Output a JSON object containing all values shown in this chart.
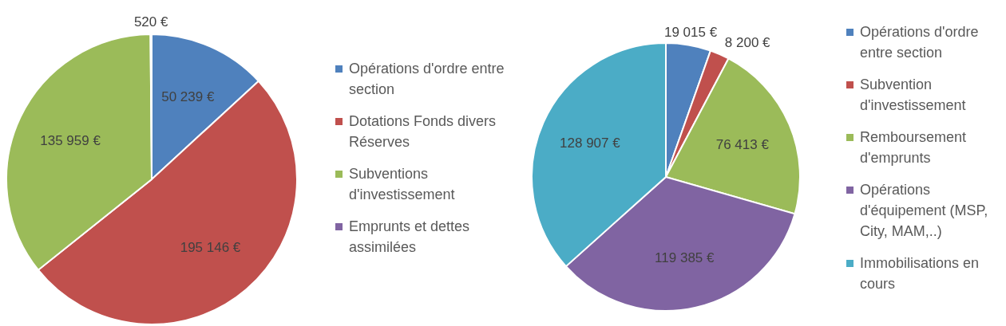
{
  "chart_data": [
    {
      "type": "pie",
      "categories": [
        "Opérations d'ordre entre section",
        "Dotations Fonds divers Réserves",
        "Subventions d'investissement",
        "Emprunts et dettes assimilées"
      ],
      "values": [
        50239,
        195146,
        135959,
        520
      ],
      "value_labels": [
        "50 239 €",
        "195 146 €",
        "135 959 €",
        "520 €"
      ],
      "colors": [
        "#4f81bd",
        "#c0504d",
        "#9bbb59",
        "#8064a2"
      ],
      "legend": "right"
    },
    {
      "type": "pie",
      "categories": [
        "Opérations d'ordre entre section",
        "Subvention d'investissement",
        "Remboursement d'emprunts",
        "Opérations d'équipement (MSP, City, MAM,..)",
        "Immobilisations en cours"
      ],
      "values": [
        19015,
        8200,
        76413,
        119385,
        128907
      ],
      "value_labels": [
        "19 015 €",
        "8 200 €",
        "76 413 €",
        "119 385 €",
        "128 907 €"
      ],
      "colors": [
        "#4f81bd",
        "#c0504d",
        "#9bbb59",
        "#8064a2",
        "#4bacc6"
      ],
      "legend": "right"
    }
  ]
}
